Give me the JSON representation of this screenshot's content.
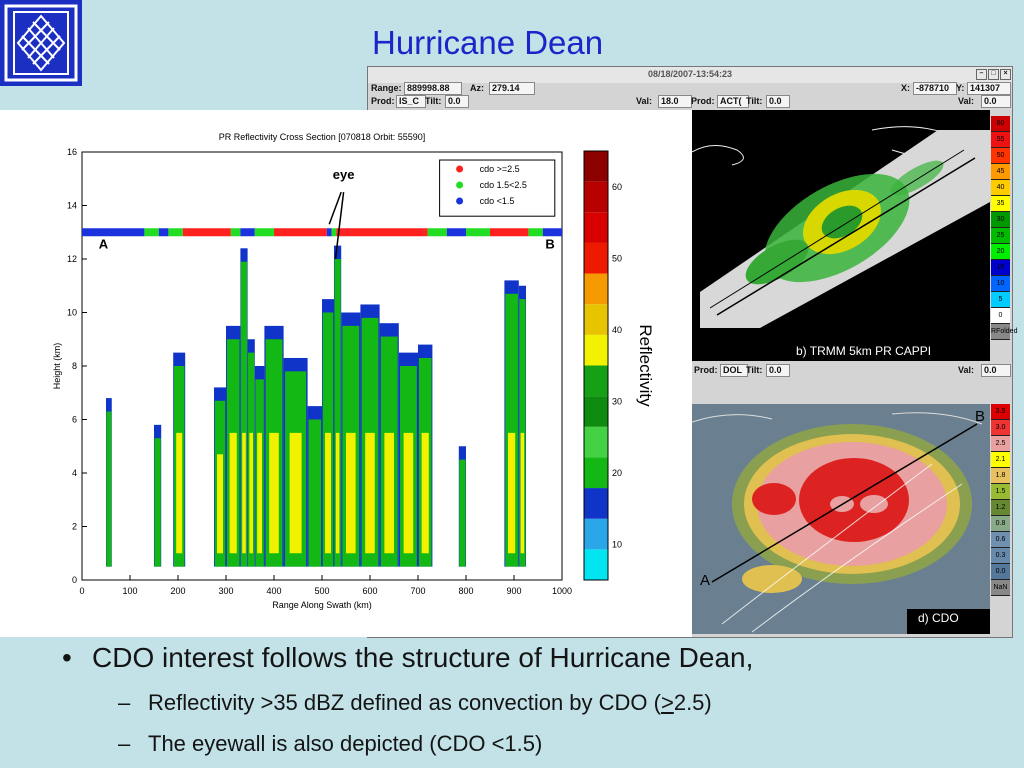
{
  "slide": {
    "title": "Hurricane Dean",
    "bullets": [
      {
        "marker": "•",
        "text": "CDO interest follows the structure of Hurricane Dean,"
      },
      {
        "marker": "–",
        "text_before": "Reflectivity >35 dBZ defined as convection by CDO (",
        "ge": ">",
        "text_after": "2.5)"
      },
      {
        "marker": "–",
        "text": "The eyewall is also depicted (CDO <1.5)"
      }
    ]
  },
  "window": {
    "title": "08/18/2007-13:54:23",
    "buttons": [
      "–",
      "□",
      "×"
    ],
    "row1": {
      "range_label": "Range:",
      "range_value": "889998.88",
      "az_label": "Az:",
      "az_value": "279.14",
      "x_label": "X:",
      "x_value": "-878710",
      "y_label": "Y:",
      "y_value": "141307"
    },
    "row2": {
      "prod_label": "Prod:",
      "prod_value": "IS_C",
      "tilt_label": "Tilt:",
      "tilt_value": "0.0",
      "val_label": "Val:",
      "val_value": "18.0",
      "prod2_label": "Prod:",
      "prod2_value": "ACT(",
      "tilt2_label": "Tilt:",
      "tilt2_value": "0.0",
      "val2_label": "Val:",
      "val2_value": "0.0"
    },
    "row3": {
      "prod_label": "Prod:",
      "prod_value": "DOL",
      "tilt_label": "Tilt:",
      "tilt_value": "0.0",
      "val_label": "Val:",
      "val_value": "0.0"
    },
    "cappi_caption": "b) TRMM 5km PR CAPPI",
    "cdo_caption": "d) CDO",
    "cappi_scale": [
      {
        "label": "60",
        "color": "#cc0000"
      },
      {
        "label": "55",
        "color": "#ee1111"
      },
      {
        "label": "50",
        "color": "#ff3300"
      },
      {
        "label": "45",
        "color": "#ff9900"
      },
      {
        "label": "40",
        "color": "#ffcc00"
      },
      {
        "label": "35",
        "color": "#ffff00"
      },
      {
        "label": "30",
        "color": "#009900"
      },
      {
        "label": "25",
        "color": "#00bb00"
      },
      {
        "label": "20",
        "color": "#00ee00"
      },
      {
        "label": "15",
        "color": "#0000cc"
      },
      {
        "label": "10",
        "color": "#0066ff"
      },
      {
        "label": "5",
        "color": "#00ccff"
      },
      {
        "label": "0",
        "color": "#ffffff"
      },
      {
        "label": "RFolded",
        "color": "#888888"
      }
    ],
    "cdo_scale": [
      {
        "label": "3.5",
        "color": "#dd0000"
      },
      {
        "label": "3.0",
        "color": "#ee3333"
      },
      {
        "label": "2.5",
        "color": "#e8a0a0"
      },
      {
        "label": "2.1",
        "color": "#ffff00"
      },
      {
        "label": "1.8",
        "color": "#e8c060"
      },
      {
        "label": "1.5",
        "color": "#99bb33"
      },
      {
        "label": "1.2",
        "color": "#668833"
      },
      {
        "label": "0.8",
        "color": "#88aa88"
      },
      {
        "label": "0.6",
        "color": "#7090b0"
      },
      {
        "label": "0.3",
        "color": "#6688aa"
      },
      {
        "label": "0.0",
        "color": "#557799"
      },
      {
        "label": "NaN",
        "color": "#888888"
      }
    ],
    "cdo_line_labels": {
      "a": "A",
      "b": "B"
    }
  },
  "chart_data": {
    "type": "heatmap",
    "title": "PR Reflectivity Cross Section [070818 Orbit: 55590]",
    "xlabel": "Range Along Swath (km)",
    "ylabel": "Height (km)",
    "xlim": [
      0,
      1000
    ],
    "ylim": [
      0,
      16
    ],
    "xticks": [
      0,
      100,
      200,
      300,
      400,
      500,
      600,
      700,
      800,
      900,
      1000
    ],
    "yticks": [
      0,
      2,
      4,
      6,
      8,
      10,
      12,
      14,
      16
    ],
    "colorbar_label": "Reflectivity",
    "colorbar_ticks": [
      10,
      20,
      30,
      40,
      50,
      60
    ],
    "colorbar_range": [
      5,
      65
    ],
    "colorbar_colors": [
      "#00e5f0",
      "#2ba6e8",
      "#1033c8",
      "#14b814",
      "#44d244",
      "#0e8a0e",
      "#16a016",
      "#f2f200",
      "#e8c400",
      "#f59a00",
      "#ee1a00",
      "#d80000",
      "#b80000",
      "#8c0000"
    ],
    "legend": {
      "position": "top-right",
      "entries": [
        {
          "label": "cdo >=2.5",
          "color": "#ff2020"
        },
        {
          "label": "cdo 1.5<2.5",
          "color": "#22dd22"
        },
        {
          "label": "cdo <1.5",
          "color": "#1a33dd"
        }
      ]
    },
    "annotations": {
      "eye": "eye",
      "a": "A",
      "b": "B"
    },
    "cdo_strip": {
      "height_km": 13,
      "segments": [
        {
          "from": 0,
          "to": 130,
          "cat": "cdo <1.5"
        },
        {
          "from": 130,
          "to": 160,
          "cat": "cdo 1.5<2.5"
        },
        {
          "from": 160,
          "to": 180,
          "cat": "cdo <1.5"
        },
        {
          "from": 180,
          "to": 210,
          "cat": "cdo 1.5<2.5"
        },
        {
          "from": 210,
          "to": 310,
          "cat": "cdo >=2.5"
        },
        {
          "from": 310,
          "to": 330,
          "cat": "cdo 1.5<2.5"
        },
        {
          "from": 330,
          "to": 360,
          "cat": "cdo <1.5"
        },
        {
          "from": 360,
          "to": 400,
          "cat": "cdo 1.5<2.5"
        },
        {
          "from": 400,
          "to": 510,
          "cat": "cdo >=2.5"
        },
        {
          "from": 510,
          "to": 520,
          "cat": "cdo <1.5"
        },
        {
          "from": 520,
          "to": 530,
          "cat": "cdo 1.5<2.5"
        },
        {
          "from": 530,
          "to": 720,
          "cat": "cdo >=2.5"
        },
        {
          "from": 720,
          "to": 760,
          "cat": "cdo 1.5<2.5"
        },
        {
          "from": 760,
          "to": 800,
          "cat": "cdo <1.5"
        },
        {
          "from": 800,
          "to": 850,
          "cat": "cdo 1.5<2.5"
        },
        {
          "from": 850,
          "to": 930,
          "cat": "cdo >=2.5"
        },
        {
          "from": 930,
          "to": 960,
          "cat": "cdo 1.5<2.5"
        },
        {
          "from": 960,
          "to": 1000,
          "cat": "cdo <1.5"
        }
      ]
    },
    "echo_columns": [
      {
        "from": 50,
        "to": 62,
        "top": 6.8
      },
      {
        "from": 150,
        "to": 165,
        "top": 5.8
      },
      {
        "from": 190,
        "to": 215,
        "top": 8.5
      },
      {
        "from": 275,
        "to": 300,
        "top": 7.2
      },
      {
        "from": 300,
        "to": 330,
        "top": 9.5
      },
      {
        "from": 330,
        "to": 345,
        "top": 12.4
      },
      {
        "from": 345,
        "to": 360,
        "top": 9.0
      },
      {
        "from": 360,
        "to": 380,
        "top": 8.0
      },
      {
        "from": 380,
        "to": 420,
        "top": 9.5
      },
      {
        "from": 420,
        "to": 470,
        "top": 8.3
      },
      {
        "from": 470,
        "to": 500,
        "top": 6.5
      },
      {
        "from": 500,
        "to": 525,
        "top": 10.5
      },
      {
        "from": 525,
        "to": 540,
        "top": 12.5
      },
      {
        "from": 540,
        "to": 580,
        "top": 10.0
      },
      {
        "from": 580,
        "to": 620,
        "top": 10.3
      },
      {
        "from": 620,
        "to": 660,
        "top": 9.6
      },
      {
        "from": 660,
        "to": 700,
        "top": 8.5
      },
      {
        "from": 700,
        "to": 730,
        "top": 8.8
      },
      {
        "from": 785,
        "to": 800,
        "top": 5.0
      },
      {
        "from": 880,
        "to": 910,
        "top": 11.2
      },
      {
        "from": 910,
        "to": 925,
        "top": 11.0
      }
    ]
  }
}
